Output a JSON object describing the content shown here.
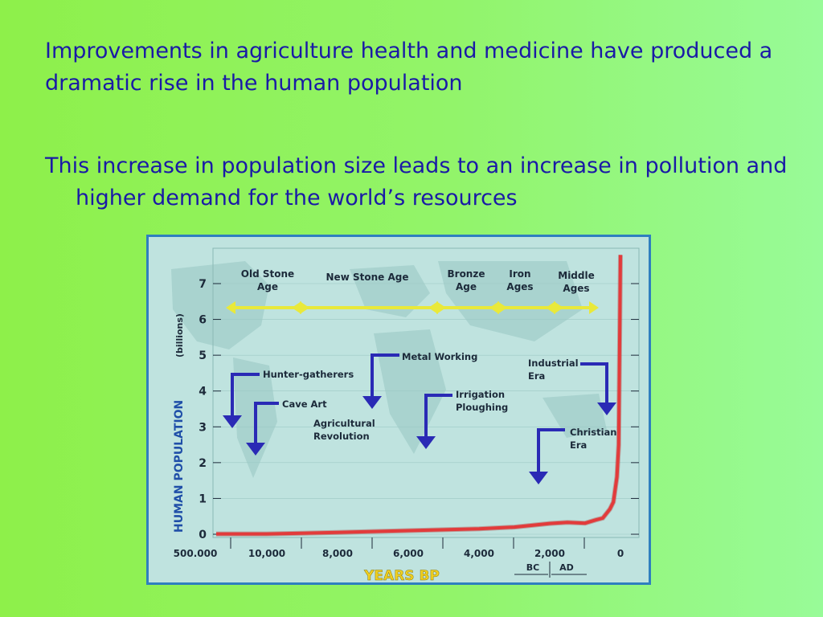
{
  "slide": {
    "paragraph_1": "Improvements in agriculture health and medicine have produced a dramatic rise in the human population",
    "paragraph_2": "This increase in population size leads to an increase in pollution and higher demand for the world’s resources"
  },
  "colors": {
    "background": "#8ef04a",
    "text": "#1a1aa6",
    "frame": "#2f7fbf",
    "plot_bg": "#bfe3df",
    "timeline": "#e9e93a",
    "curve": "#e23b3b",
    "arrow": "#2a2ab5",
    "ylabel": "#1f4fa8",
    "xlabel": "#f0d020"
  },
  "chart_data": {
    "type": "line",
    "ylabel": "HUMAN POPULATION",
    "ylabel_unit": "(billions)",
    "xlabel": "YEARS  BP",
    "ylim": [
      0,
      7
    ],
    "y_ticks": [
      "0",
      "1",
      "2",
      "3",
      "4",
      "5",
      "6",
      "7"
    ],
    "x_ticks": [
      "500.000",
      "10,000",
      "8,000",
      "6,000",
      "4,000",
      "2,000",
      "0"
    ],
    "era_labels": [
      "BC",
      "AD"
    ],
    "ages": [
      "Old Stone Age",
      "New Stone Age",
      "Bronze Age",
      "Iron Ages",
      "Middle Ages"
    ],
    "annotations": [
      {
        "id": "hunter",
        "text": "Hunter-gatherers"
      },
      {
        "id": "cave",
        "text": "Cave Art"
      },
      {
        "id": "agri",
        "text": "Agricultural Revolution"
      },
      {
        "id": "metal",
        "text": "Metal Working"
      },
      {
        "id": "irrig",
        "text": "Irrigation Ploughing"
      },
      {
        "id": "christ",
        "text": "Christian Era"
      },
      {
        "id": "indus",
        "text": "Industrial Era"
      }
    ],
    "series": [
      {
        "x_years_bp": [
          10000,
          8000,
          6000,
          4000,
          3000,
          2000,
          1500,
          1000,
          700,
          500,
          300,
          200,
          100,
          50,
          0
        ],
        "y_billions": [
          0.01,
          0.05,
          0.1,
          0.15,
          0.2,
          0.3,
          0.33,
          0.31,
          0.4,
          0.45,
          0.7,
          0.9,
          1.6,
          2.5,
          7.8
        ]
      }
    ]
  }
}
